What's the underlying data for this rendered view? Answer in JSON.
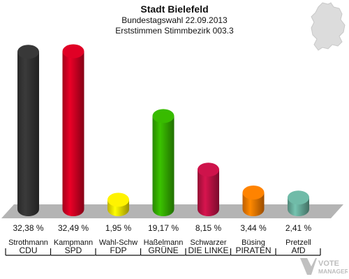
{
  "header": {
    "title": "Stadt Bielefeld",
    "subtitle": "Bundestagswahl 22.09.2013",
    "subtitle2": "Erststimmen Stimmbezirk 003.3"
  },
  "logo": {
    "text1": "VOTE",
    "text2": "MANAGER"
  },
  "chart_data": {
    "type": "bar",
    "title": "Stadt Bielefeld",
    "ylim": [
      0,
      34
    ],
    "grid": false,
    "categories": [
      "CDU",
      "SPD",
      "FDP",
      "GRÜNE",
      "DIE LINKE",
      "PIRATEN",
      "AfD"
    ],
    "candidates": [
      "Strothmann",
      "Kampmann",
      "Wahl-Schw",
      "Haßelmann",
      "Schwarzer",
      "Büsing",
      "Pretzell"
    ],
    "values": [
      32.38,
      32.49,
      1.95,
      19.17,
      8.15,
      3.44,
      2.41
    ],
    "value_labels": [
      "32,38 %",
      "32,49 %",
      "1,95 %",
      "19,17 %",
      "8,15 %",
      "3,44 %",
      "2,41 %"
    ],
    "colors": [
      "#333333",
      "#cc0022",
      "#eedd00",
      "#33aa00",
      "#bb1144",
      "#ee7700",
      "#66aa99"
    ]
  }
}
